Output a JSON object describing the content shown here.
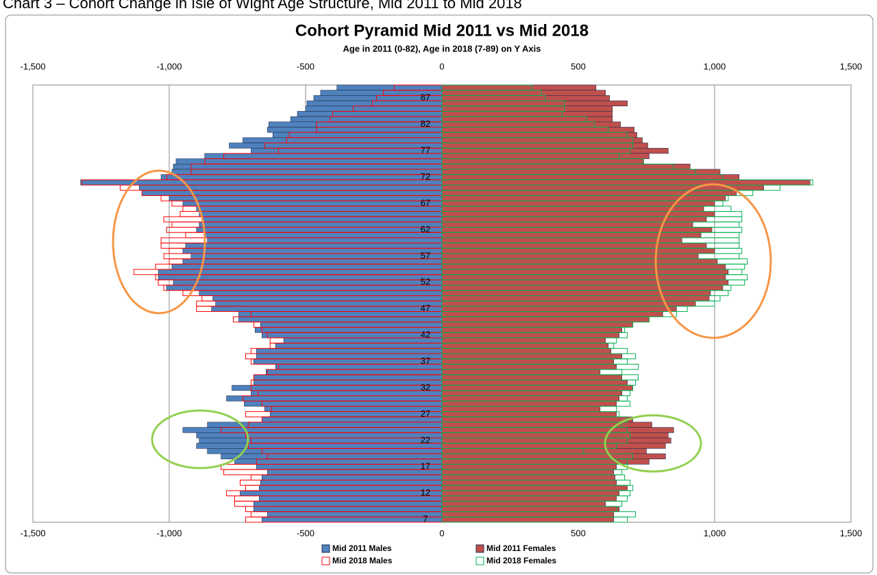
{
  "chart_data": {
    "type": "pyramid",
    "heading": "Chart 3 – Cohort Change in Isle of Wight Age Structure, Mid 2011 to Mid 2018",
    "title": "Cohort Pyramid Mid 2011 vs Mid 2018",
    "subtitle": "Age in 2011  (0-82),  Age in 2018 (7-89) on Y Axis",
    "categories": [
      null,
      null,
      "87",
      null,
      null,
      null,
      null,
      "82",
      null,
      null,
      null,
      null,
      "77",
      null,
      null,
      null,
      null,
      "72",
      null,
      null,
      null,
      null,
      "67",
      null,
      null,
      null,
      null,
      "62",
      null,
      null,
      null,
      null,
      "57",
      null,
      null,
      null,
      null,
      "52",
      null,
      null,
      null,
      null,
      "47",
      null,
      null,
      null,
      null,
      "42",
      null,
      null,
      null,
      null,
      "37",
      null,
      null,
      null,
      null,
      "32",
      null,
      null,
      null,
      null,
      "27",
      null,
      null,
      null,
      null,
      "22",
      null,
      null,
      null,
      null,
      "17",
      null,
      null,
      null,
      null,
      "12",
      null,
      null,
      null,
      null,
      "7"
    ],
    "series": [
      {
        "name": "Mid 2011 Males",
        "color": "#4f81bd",
        "style": "filled",
        "values": [
          -385,
          -445,
          -470,
          -495,
          -500,
          -530,
          -555,
          -635,
          -640,
          -620,
          -730,
          -780,
          -700,
          -870,
          -975,
          -985,
          -990,
          -1030,
          -1325,
          -1110,
          -1100,
          -1000,
          -950,
          -900,
          -890,
          -880,
          -890,
          -900,
          -870,
          -860,
          -940,
          -950,
          -920,
          -950,
          -990,
          -1040,
          -1040,
          -985,
          -1010,
          -890,
          -840,
          -830,
          -845,
          -745,
          -745,
          -665,
          -685,
          -660,
          -580,
          -610,
          -680,
          -680,
          -690,
          -610,
          -645,
          -690,
          -690,
          -770,
          -700,
          -790,
          -725,
          -650,
          -630,
          -660,
          -860,
          -950,
          -900,
          -890,
          -900,
          -860,
          -810,
          -760,
          -680,
          -640,
          -660,
          -665,
          -670,
          -740,
          -670,
          -690,
          -690,
          -640,
          -660
        ]
      },
      {
        "name": "Mid 2011 Females",
        "color": "#c0504d",
        "style": "filled",
        "values": [
          565,
          600,
          615,
          680,
          625,
          625,
          625,
          655,
          705,
          715,
          735,
          755,
          830,
          760,
          740,
          910,
          1020,
          1090,
          1350,
          1180,
          1080,
          1040,
          1000,
          960,
          1000,
          970,
          920,
          990,
          950,
          880,
          970,
          1000,
          940,
          1010,
          1040,
          1050,
          1040,
          1050,
          1030,
          985,
          980,
          930,
          860,
          810,
          760,
          700,
          660,
          650,
          600,
          610,
          620,
          660,
          630,
          640,
          580,
          660,
          680,
          700,
          660,
          650,
          640,
          580,
          640,
          700,
          770,
          850,
          830,
          840,
          820,
          750,
          820,
          760,
          640,
          630,
          635,
          640,
          680,
          650,
          640,
          600,
          650,
          630,
          630
        ]
      },
      {
        "name": "Mid 2018 Males",
        "color": "#ff0000",
        "style": "outline",
        "values": [
          -175,
          -215,
          -240,
          -255,
          -325,
          -400,
          -410,
          -460,
          -460,
          -560,
          -570,
          -650,
          -600,
          -800,
          -870,
          -920,
          -920,
          -1010,
          -1320,
          -1180,
          -1100,
          -1030,
          -990,
          -950,
          -960,
          -1020,
          -990,
          -1010,
          -940,
          -1030,
          -1030,
          -1000,
          -1020,
          -1000,
          -1050,
          -1130,
          -1050,
          -1040,
          -1020,
          -950,
          -880,
          -900,
          -900,
          -700,
          -765,
          -690,
          -660,
          -640,
          -630,
          -630,
          -700,
          -720,
          -700,
          -600,
          -640,
          -690,
          -700,
          -700,
          -675,
          -730,
          -660,
          -625,
          -720,
          -660,
          -710,
          -810,
          -720,
          -700,
          -710,
          -660,
          -640,
          -680,
          -810,
          -800,
          -700,
          -740,
          -720,
          -790,
          -760,
          -760,
          -720,
          -700,
          -720
        ]
      },
      {
        "name": "Mid 2018 Females",
        "color": "#00b050",
        "style": "outline",
        "values": [
          330,
          365,
          380,
          450,
          450,
          440,
          530,
          560,
          610,
          680,
          700,
          700,
          690,
          650,
          740,
          850,
          930,
          1030,
          1360,
          1240,
          1140,
          1050,
          1030,
          1060,
          1100,
          1100,
          1090,
          1100,
          1090,
          1090,
          1090,
          1100,
          1090,
          1120,
          1110,
          1100,
          1120,
          1110,
          1060,
          1050,
          1020,
          1000,
          900,
          860,
          760,
          700,
          670,
          680,
          640,
          630,
          680,
          710,
          680,
          720,
          660,
          720,
          710,
          700,
          690,
          680,
          690,
          640,
          650,
          680,
          660,
          680,
          690,
          680,
          640,
          520,
          700,
          680,
          680,
          660,
          670,
          690,
          700,
          690,
          680,
          660,
          640,
          710,
          680
        ]
      }
    ],
    "xlim": [
      -1500,
      1500
    ],
    "xticks": [
      {
        "value": -1500,
        "label": "-1,500"
      },
      {
        "value": -1000,
        "label": "-1,000"
      },
      -500,
      0,
      500,
      {
        "value": 1000,
        "label": "1,000"
      },
      {
        "value": 1500,
        "label": "1,500"
      }
    ],
    "grid": true
  }
}
